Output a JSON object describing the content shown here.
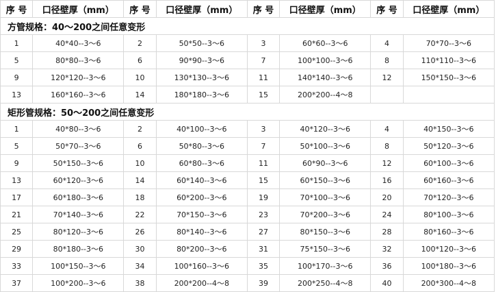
{
  "header": {
    "seq_label": "序 号",
    "spec_label": "口径壁厚（mm）"
  },
  "sections": [
    {
      "title": "方管规格：40～200之间任意变形",
      "rows": [
        [
          [
            "1",
            "40*40--3～6"
          ],
          [
            "2",
            "50*50--3～6"
          ],
          [
            "3",
            "60*60--3～6"
          ],
          [
            "4",
            "70*70--3～6"
          ]
        ],
        [
          [
            "5",
            "80*80--3～6"
          ],
          [
            "6",
            "90*90--3～6"
          ],
          [
            "7",
            "100*100--3～6"
          ],
          [
            "8",
            "110*110--3～6"
          ]
        ],
        [
          [
            "9",
            "120*120--3～6"
          ],
          [
            "10",
            "130*130--3～6"
          ],
          [
            "11",
            "140*140--3～6"
          ],
          [
            "12",
            "150*150--3～6"
          ]
        ],
        [
          [
            "13",
            "160*160--3～6"
          ],
          [
            "14",
            "180*180--3～6"
          ],
          [
            "15",
            "200*200--4～8"
          ],
          [
            "",
            ""
          ]
        ]
      ]
    },
    {
      "title": "矩形管规格：50～200之间任意变形",
      "rows": [
        [
          [
            "1",
            "40*80--3～6"
          ],
          [
            "2",
            "40*100--3～6"
          ],
          [
            "3",
            "40*120--3～6"
          ],
          [
            "4",
            "40*150--3～6"
          ]
        ],
        [
          [
            "5",
            "50*70--3～6"
          ],
          [
            "6",
            "50*80--3～6"
          ],
          [
            "7",
            "50*100--3～6"
          ],
          [
            "8",
            "50*120--3～6"
          ]
        ],
        [
          [
            "9",
            "50*150--3～6"
          ],
          [
            "10",
            "60*80--3～6"
          ],
          [
            "11",
            "60*90--3～6"
          ],
          [
            "12",
            "60*100--3～6"
          ]
        ],
        [
          [
            "13",
            "60*120--3～6"
          ],
          [
            "14",
            "60*140--3～6"
          ],
          [
            "15",
            "60*150--3～6"
          ],
          [
            "16",
            "60*160--3～6"
          ]
        ],
        [
          [
            "17",
            "60*180--3～6"
          ],
          [
            "18",
            "60*200--3～6"
          ],
          [
            "19",
            "70*100--3～6"
          ],
          [
            "20",
            "70*120--3～6"
          ]
        ],
        [
          [
            "21",
            "70*140--3～6"
          ],
          [
            "22",
            "70*150--3～6"
          ],
          [
            "23",
            "70*200--3～6"
          ],
          [
            "24",
            "80*100--3～6"
          ]
        ],
        [
          [
            "25",
            "80*120--3～6"
          ],
          [
            "26",
            "80*140--3～6"
          ],
          [
            "27",
            "80*150--3～6"
          ],
          [
            "28",
            "80*160--3～6"
          ]
        ],
        [
          [
            "29",
            "80*180--3～6"
          ],
          [
            "30",
            "80*200--3～6"
          ],
          [
            "31",
            "75*150--3～6"
          ],
          [
            "32",
            "100*120--3～6"
          ]
        ],
        [
          [
            "33",
            "100*150--3～6"
          ],
          [
            "34",
            "100*160--3～6"
          ],
          [
            "35",
            "100*170--3～6"
          ],
          [
            "36",
            "100*180--3～6"
          ]
        ],
        [
          [
            "37",
            "100*200--3～6"
          ],
          [
            "38",
            "200*200--4～8"
          ],
          [
            "39",
            "200*250--4～8"
          ],
          [
            "40",
            "200*300--4～8"
          ]
        ]
      ]
    }
  ]
}
